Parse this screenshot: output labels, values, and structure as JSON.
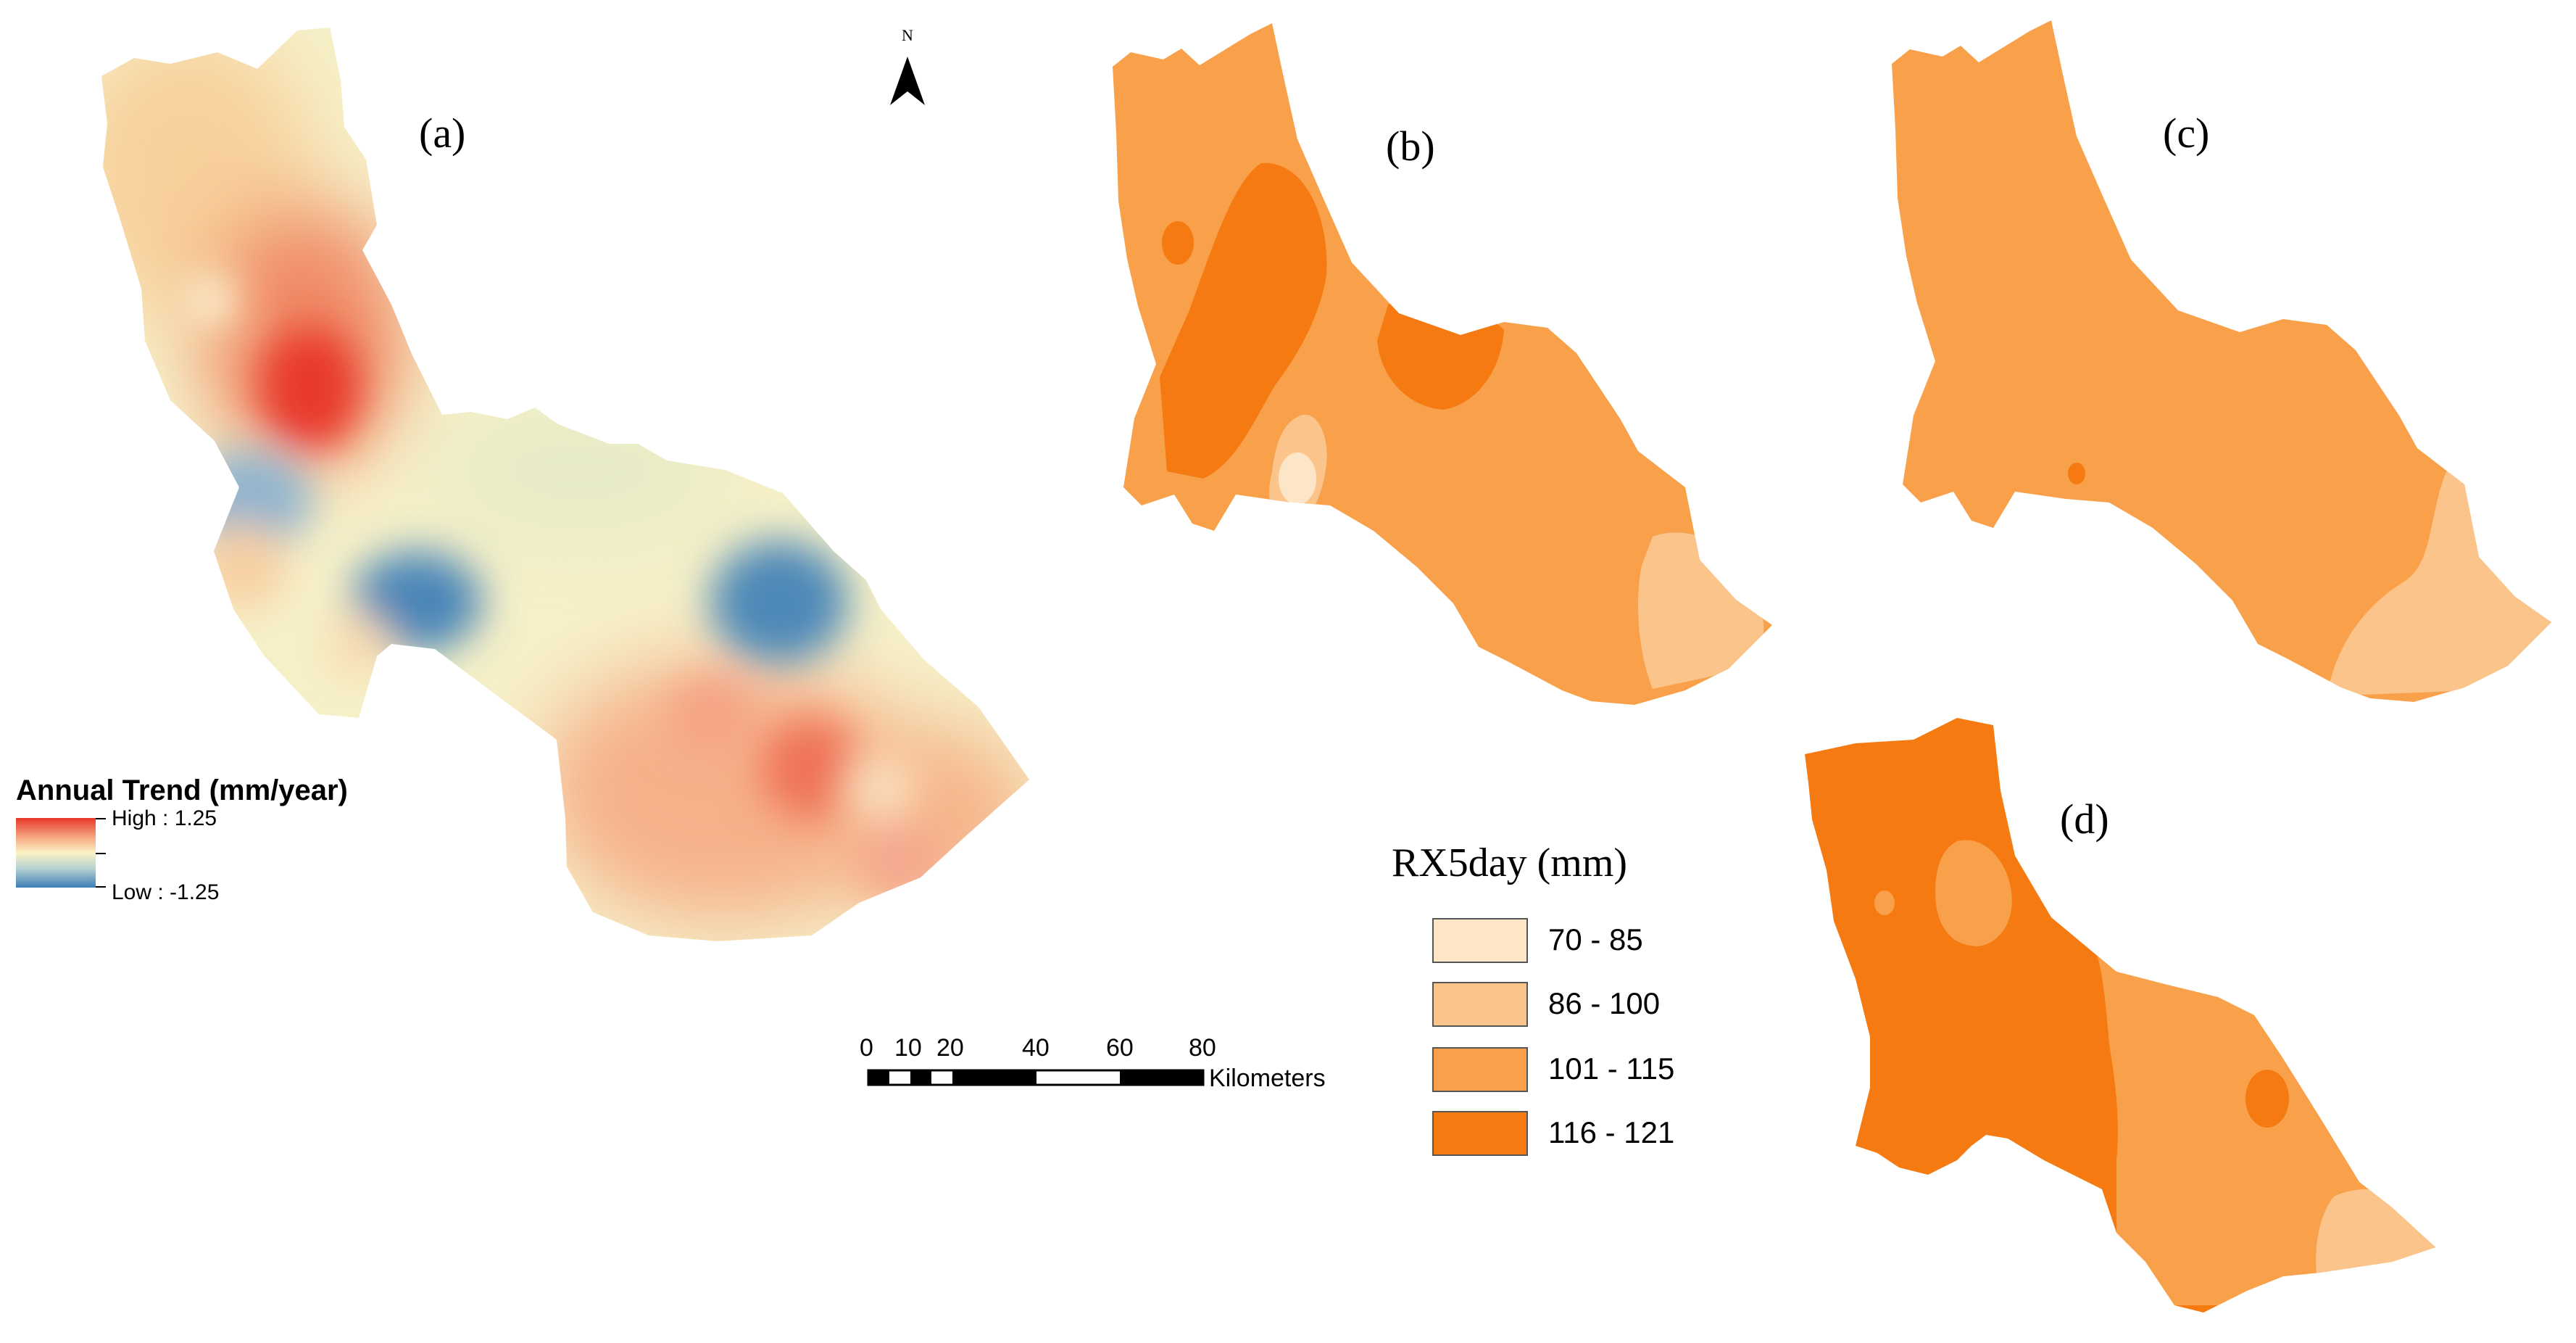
{
  "panels": {
    "a": "(a)",
    "b": "(b)",
    "c": "(c)",
    "d": "(d)"
  },
  "north_arrow": {
    "label": "N"
  },
  "legend_trend": {
    "title": "Annual Trend (mm/year)",
    "high_label": "High : 1.25",
    "low_label": "Low : -1.25",
    "high_color": "#e8382a",
    "mid_color": "#fbf3c4",
    "low_color": "#3e7db5"
  },
  "legend_rx5day": {
    "title": "RX5day (mm)",
    "classes": [
      {
        "label": "70 - 85",
        "color": "#fde6c8"
      },
      {
        "label": "86 - 100",
        "color": "#fbc48a"
      },
      {
        "label": "101 - 115",
        "color": "#f9a14a"
      },
      {
        "label": "116 - 121",
        "color": "#f57a12"
      }
    ]
  },
  "scale_bar": {
    "ticks": [
      "0",
      "10",
      "20",
      "40",
      "60",
      "80"
    ],
    "unit": "Kilometers"
  }
}
